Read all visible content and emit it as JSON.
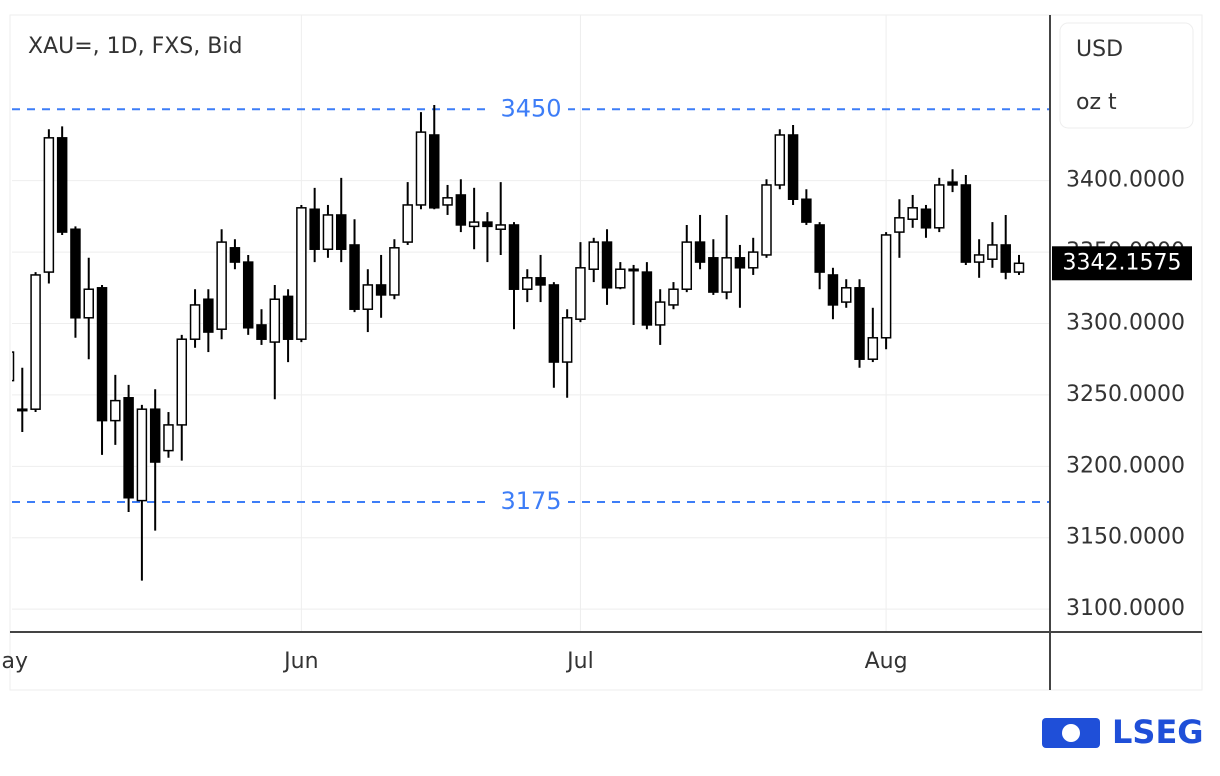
{
  "chart_data": {
    "type": "candlestick",
    "title": "XAU=, 1D, FXS, Bid",
    "units": [
      "USD",
      "oz t"
    ],
    "brand": "LSEG",
    "categories": [
      "May",
      null,
      null,
      null,
      null,
      null,
      null,
      null,
      null,
      null,
      null,
      null,
      null,
      null,
      null,
      null,
      null,
      null,
      null,
      null,
      null,
      null,
      "Jun",
      null,
      null,
      null,
      null,
      null,
      null,
      null,
      null,
      null,
      null,
      null,
      null,
      null,
      null,
      null,
      null,
      null,
      null,
      null,
      null,
      "Jul",
      null,
      null,
      null,
      null,
      null,
      null,
      null,
      null,
      null,
      null,
      null,
      null,
      null,
      null,
      null,
      null,
      null,
      null,
      null,
      null,
      null,
      null,
      "Aug",
      null,
      null,
      null,
      null,
      null,
      null,
      null,
      null,
      null,
      null
    ],
    "open": [
      3260,
      3240,
      3240,
      3336,
      3430,
      3366,
      3304,
      3325,
      3232,
      3248,
      3176,
      3240,
      3211,
      3229,
      3289,
      3317,
      3296,
      3353,
      3343,
      3299,
      3287,
      3319,
      3289,
      3380,
      3352,
      3376,
      3355,
      3310,
      3327,
      3320,
      3357,
      3383,
      3432,
      3383,
      3390,
      3368,
      3371,
      3366,
      3369,
      3324,
      3332,
      3327,
      3273,
      3303,
      3338,
      3357,
      3325,
      3337,
      3336,
      3299,
      3313,
      3324,
      3357,
      3346,
      3322,
      3346,
      3339,
      3348,
      3397,
      3432,
      3387,
      3369,
      3334,
      3315,
      3325,
      3275,
      3290,
      3364,
      3373,
      3380,
      3367,
      3399,
      3397,
      3343,
      3345,
      3355,
      3336
    ],
    "high": [
      3290,
      3269,
      3336,
      3436,
      3438,
      3368,
      3346,
      3327,
      3264,
      3257,
      3243,
      3254,
      3238,
      3292,
      3324,
      3324,
      3366,
      3359,
      3348,
      3310,
      3327,
      3324,
      3383,
      3395,
      3383,
      3402,
      3373,
      3338,
      3348,
      3359,
      3399,
      3448,
      3453,
      3397,
      3401,
      3395,
      3378,
      3399,
      3371,
      3338,
      3348,
      3329,
      3310,
      3357,
      3360,
      3366,
      3343,
      3341,
      3343,
      3324,
      3329,
      3369,
      3376,
      3359,
      3376,
      3355,
      3360,
      3401,
      3436,
      3439,
      3394,
      3371,
      3339,
      3331,
      3331,
      3311,
      3364,
      3387,
      3390,
      3383,
      3402,
      3408,
      3404,
      3359,
      3371,
      3376,
      3348
    ],
    "low": [
      3240,
      3224,
      3238,
      3328,
      3362,
      3290,
      3275,
      3208,
      3215,
      3168,
      3120,
      3155,
      3206,
      3204,
      3283,
      3280,
      3289,
      3338,
      3292,
      3285,
      3247,
      3273,
      3287,
      3343,
      3346,
      3343,
      3308,
      3294,
      3304,
      3317,
      3355,
      3380,
      3380,
      3376,
      3364,
      3352,
      3343,
      3348,
      3296,
      3315,
      3315,
      3255,
      3248,
      3301,
      3329,
      3313,
      3324,
      3299,
      3296,
      3285,
      3310,
      3322,
      3338,
      3320,
      3317,
      3311,
      3334,
      3346,
      3394,
      3383,
      3369,
      3324,
      3303,
      3311,
      3269,
      3273,
      3282,
      3346,
      3367,
      3360,
      3364,
      3392,
      3341,
      3332,
      3339,
      3331,
      3334
    ],
    "close": [
      3280,
      3240,
      3334,
      3430,
      3364,
      3304,
      3324,
      3232,
      3246,
      3178,
      3240,
      3203,
      3229,
      3289,
      3313,
      3294,
      3357,
      3343,
      3297,
      3289,
      3317,
      3289,
      3381,
      3352,
      3376,
      3352,
      3310,
      3327,
      3320,
      3353,
      3383,
      3434,
      3381,
      3388,
      3369,
      3371,
      3368,
      3369,
      3324,
      3332,
      3327,
      3273,
      3304,
      3339,
      3357,
      3325,
      3338,
      3338,
      3299,
      3315,
      3324,
      3357,
      3343,
      3322,
      3346,
      3339,
      3350,
      3397,
      3432,
      3387,
      3371,
      3336,
      3313,
      3325,
      3275,
      3290,
      3362,
      3374,
      3381,
      3367,
      3397,
      3397,
      3343,
      3348,
      3355,
      3336,
      3342.1575
    ],
    "up_color": "#ffffff",
    "down_color": "#000000",
    "hlines": [
      3450,
      3175
    ],
    "hline_color": "#3d7df7",
    "ylim": [
      3084,
      3516
    ],
    "yticks": [
      {
        "value": 3100,
        "label": "3100.0000"
      },
      {
        "value": 3150,
        "label": "3150.0000"
      },
      {
        "value": 3200,
        "label": "3200.0000"
      },
      {
        "value": 3250,
        "label": "3250.0000"
      },
      {
        "value": 3300,
        "label": "3300.0000"
      },
      {
        "value": 3350,
        "label": "3350.0000"
      },
      {
        "value": 3400,
        "label": "3400.0000"
      }
    ],
    "grid": true
  }
}
